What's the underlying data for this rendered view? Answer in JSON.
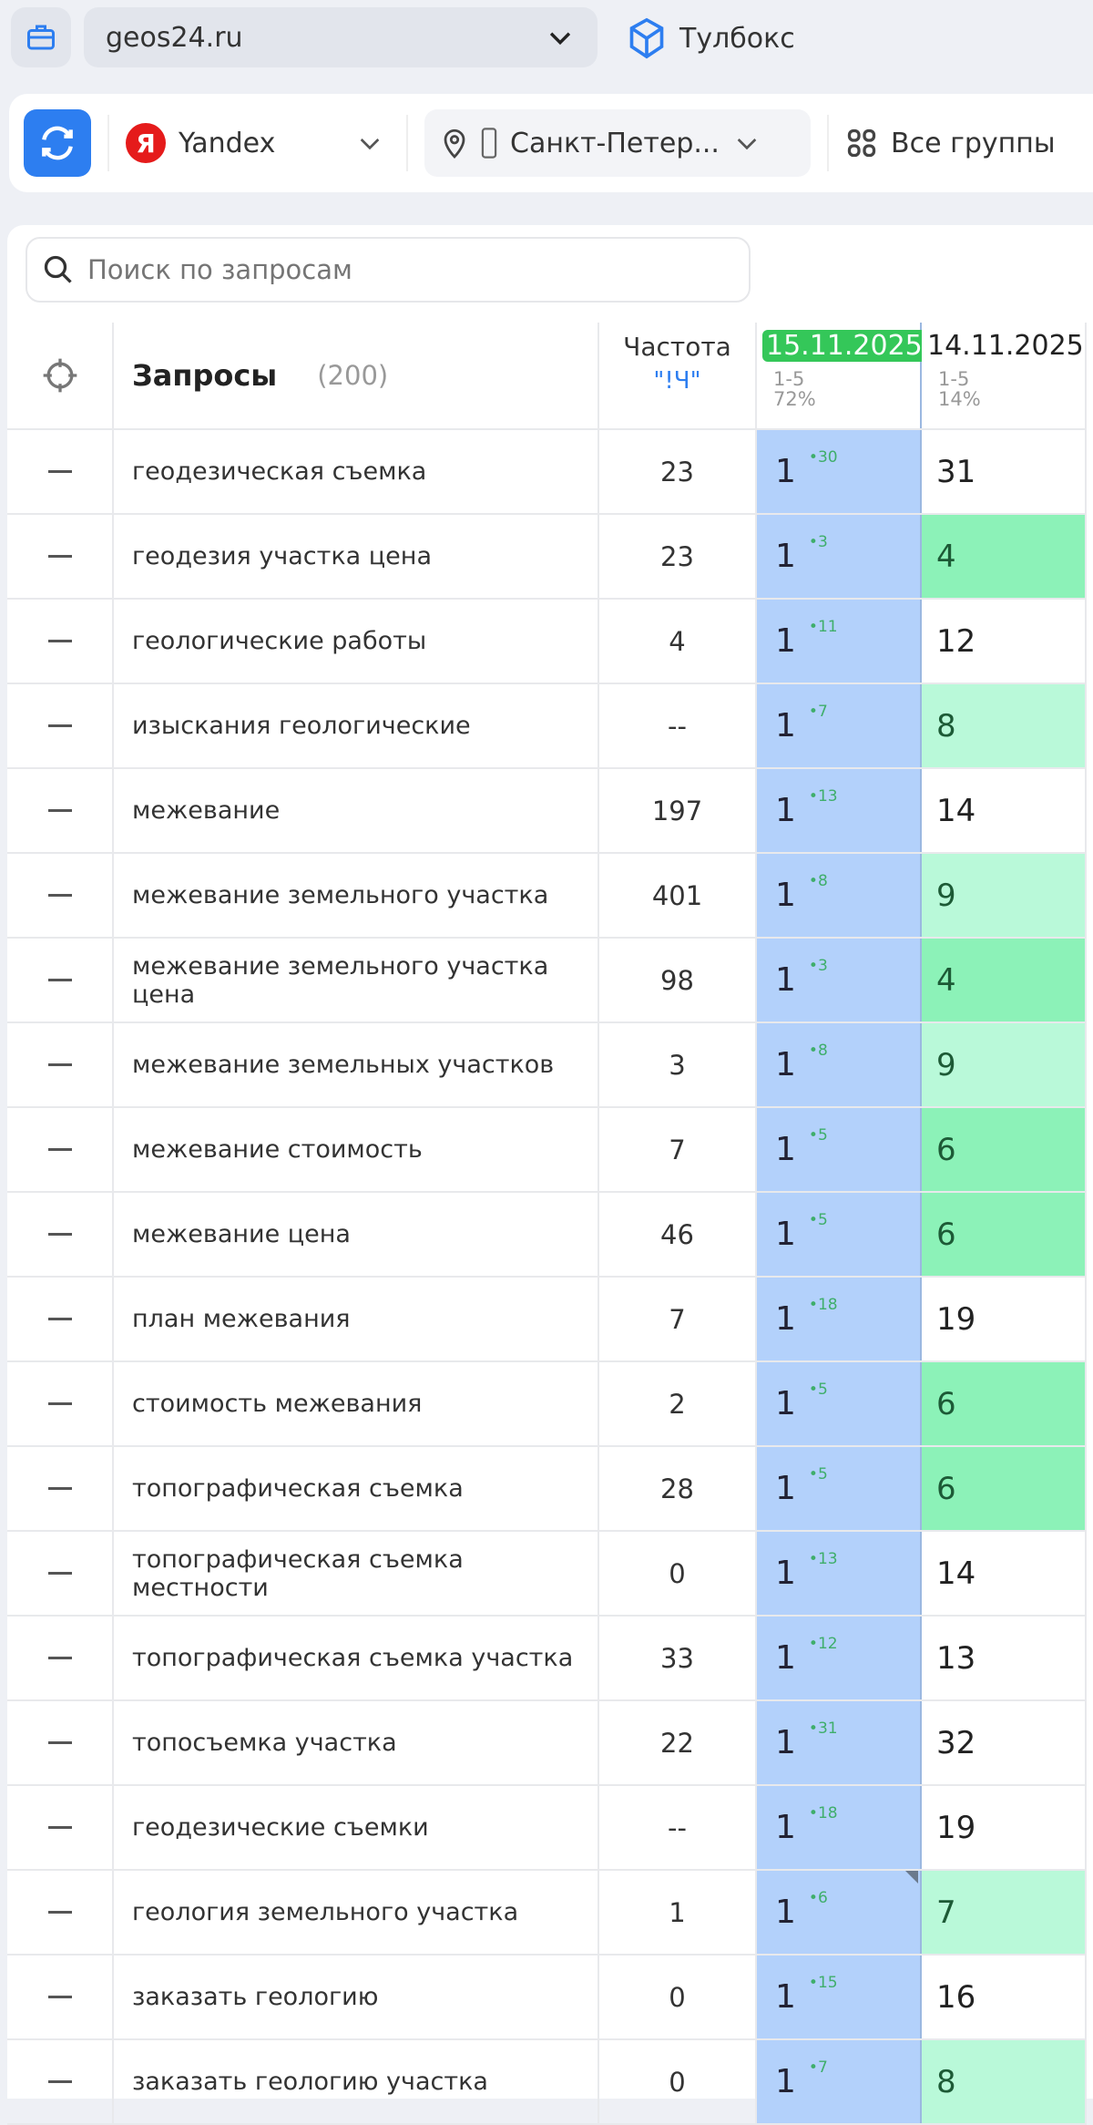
{
  "header": {
    "project": "geos24.ru",
    "toolbox_label": "Тулбокс"
  },
  "toolbar": {
    "engine": "Yandex",
    "region": "Санкт-Петер...",
    "groups": "Все группы"
  },
  "search": {
    "placeholder": "Поиск по запросам"
  },
  "table": {
    "col_queries": "Запросы",
    "count": "(200)",
    "col_freq": "Частота",
    "freq_operator": "\"!Ч\"",
    "dates": [
      {
        "date": "15.11.2025",
        "range": "1-5",
        "pct": "72%",
        "highlight": true
      },
      {
        "date": "14.11.2025",
        "range": "1-5",
        "pct": "14%"
      }
    ],
    "rows": [
      {
        "q": "геодезическая съемка",
        "f": "23",
        "p1": "1",
        "d": "30",
        "p2": "31",
        "g": 0
      },
      {
        "q": "геодезия участка цена",
        "f": "23",
        "p1": "1",
        "d": "3",
        "p2": "4",
        "g": 1
      },
      {
        "q": "геологические работы",
        "f": "4",
        "p1": "1",
        "d": "11",
        "p2": "12",
        "g": 0
      },
      {
        "q": "изыскания геологические",
        "f": "--",
        "p1": "1",
        "d": "7",
        "p2": "8",
        "g": 2
      },
      {
        "q": "межевание",
        "f": "197",
        "p1": "1",
        "d": "13",
        "p2": "14",
        "g": 0
      },
      {
        "q": "межевание земельного участка",
        "f": "401",
        "p1": "1",
        "d": "8",
        "p2": "9",
        "g": 2
      },
      {
        "q": "межевание земельного участка цена",
        "f": "98",
        "p1": "1",
        "d": "3",
        "p2": "4",
        "g": 1
      },
      {
        "q": "межевание земельных участков",
        "f": "3",
        "p1": "1",
        "d": "8",
        "p2": "9",
        "g": 2
      },
      {
        "q": "межевание стоимость",
        "f": "7",
        "p1": "1",
        "d": "5",
        "p2": "6",
        "g": 1
      },
      {
        "q": "межевание цена",
        "f": "46",
        "p1": "1",
        "d": "5",
        "p2": "6",
        "g": 1
      },
      {
        "q": "план межевания",
        "f": "7",
        "p1": "1",
        "d": "18",
        "p2": "19",
        "g": 0
      },
      {
        "q": "стоимость межевания",
        "f": "2",
        "p1": "1",
        "d": "5",
        "p2": "6",
        "g": 1
      },
      {
        "q": "топографическая съемка",
        "f": "28",
        "p1": "1",
        "d": "5",
        "p2": "6",
        "g": 1
      },
      {
        "q": "топографическая съемка местности",
        "f": "0",
        "p1": "1",
        "d": "13",
        "p2": "14",
        "g": 0
      },
      {
        "q": "топографическая съемка участка",
        "f": "33",
        "p1": "1",
        "d": "12",
        "p2": "13",
        "g": 0
      },
      {
        "q": "топосъемка участка",
        "f": "22",
        "p1": "1",
        "d": "31",
        "p2": "32",
        "g": 0
      },
      {
        "q": "геодезические съемки",
        "f": "--",
        "p1": "1",
        "d": "18",
        "p2": "19",
        "g": 0
      },
      {
        "q": "геология земельного участка",
        "f": "1",
        "p1": "1",
        "d": "6",
        "p2": "7",
        "g": 2,
        "mark": true
      },
      {
        "q": "заказать геологию",
        "f": "0",
        "p1": "1",
        "d": "15",
        "p2": "16",
        "g": 0
      },
      {
        "q": "заказать геологию участка",
        "f": "0",
        "p1": "1",
        "d": "7",
        "p2": "8",
        "g": 2
      }
    ]
  },
  "colors": {
    "accent": "#2d7ef0",
    "current_col": "#b3d1fb",
    "green_strong": "#8cf2b8",
    "green_light": "#b9f9d9",
    "date_badge": "#34c759"
  }
}
